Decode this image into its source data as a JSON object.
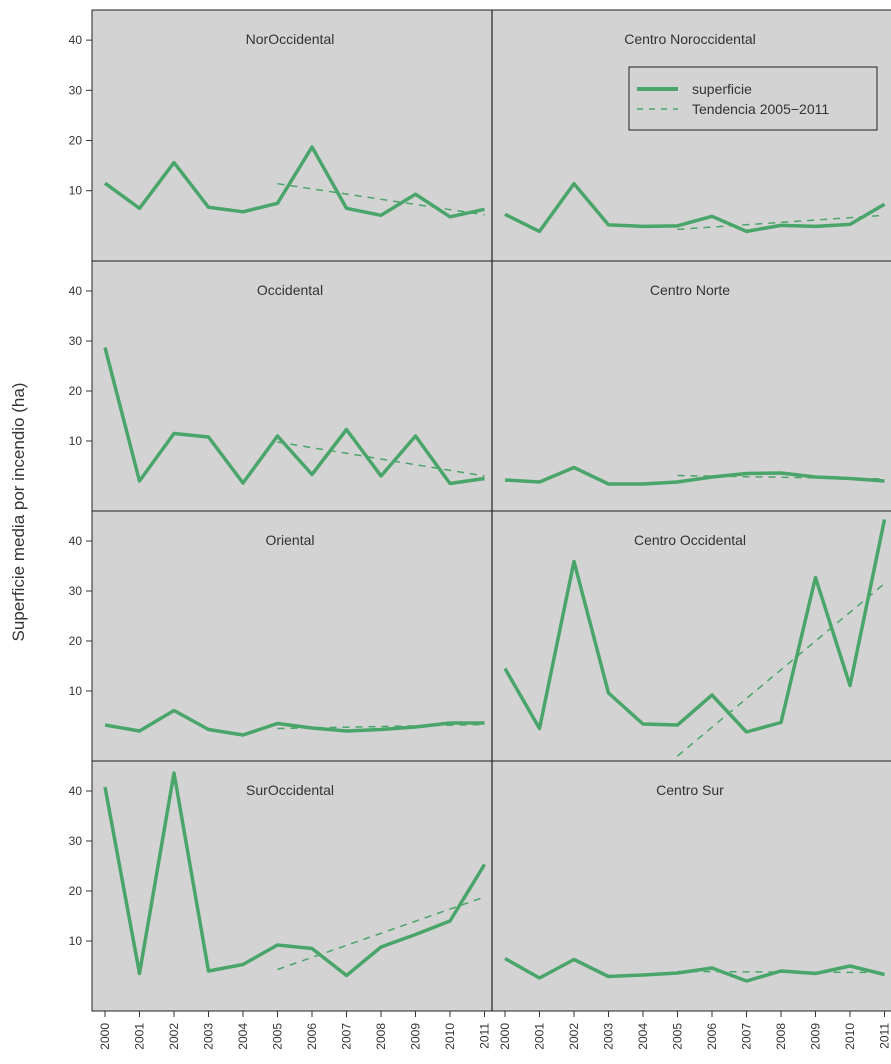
{
  "chart_data": {
    "type": "line",
    "ylabel": "Superficie media por incendio (ha)",
    "x": [
      "2000",
      "2001",
      "2002",
      "2003",
      "2004",
      "2005",
      "2006",
      "2007",
      "2008",
      "2009",
      "2010",
      "2011"
    ],
    "y_ticks": [
      10,
      20,
      30,
      40
    ],
    "ylim": [
      -4,
      46
    ],
    "grid": false,
    "background_color": "#d3d3d3",
    "series_color": "#4aa56a",
    "legend": {
      "placement": "top-right of panel Centro Noroccidental",
      "entries": [
        "superficie",
        "Tendencia 2005−2011"
      ]
    },
    "panels": [
      {
        "title": "NorOccidental",
        "superficie": [
          11.5,
          6.5,
          15.6,
          6.7,
          5.8,
          7.5,
          18.7,
          6.5,
          5.1,
          9.3,
          4.8,
          6.3
        ],
        "tendencia": {
          "from": "2005",
          "to": "2011",
          "values": [
            11.4,
            5.2
          ]
        }
      },
      {
        "title": "Centro Noroccidental",
        "superficie": [
          5.3,
          1.9,
          11.4,
          3.2,
          2.9,
          3.0,
          4.9,
          1.9,
          3.1,
          2.9,
          3.3,
          7.3
        ],
        "tendencia": {
          "from": "2005",
          "to": "2011",
          "values": [
            2.3,
            5.1
          ]
        }
      },
      {
        "title": "Occidental",
        "superficie": [
          28.7,
          2.0,
          11.5,
          10.8,
          1.6,
          11.0,
          3.3,
          12.3,
          3.0,
          11.0,
          1.5,
          2.5
        ],
        "tendencia": {
          "from": "2005",
          "to": "2011",
          "values": [
            9.8,
            3.0
          ]
        }
      },
      {
        "title": "Centro Norte",
        "superficie": [
          2.2,
          1.8,
          4.7,
          1.4,
          1.4,
          1.8,
          2.8,
          3.5,
          3.6,
          2.8,
          2.5,
          2.0
        ],
        "tendencia": {
          "from": "2005",
          "to": "2011",
          "values": [
            3.1,
            2.4
          ]
        }
      },
      {
        "title": "Oriental",
        "superficie": [
          3.2,
          2.0,
          6.1,
          2.3,
          1.2,
          3.5,
          2.6,
          2.0,
          2.3,
          2.8,
          3.6,
          3.6
        ],
        "tendencia": {
          "from": "2005",
          "to": "2011",
          "values": [
            2.5,
            3.3
          ]
        }
      },
      {
        "title": "Centro Occidental",
        "superficie": [
          14.5,
          2.5,
          35.9,
          9.6,
          3.4,
          3.2,
          9.2,
          1.8,
          3.7,
          32.7,
          11.1,
          44.3
        ],
        "tendencia": {
          "from": "2005",
          "to": "2011",
          "values": [
            -3.0,
            31.5
          ]
        }
      },
      {
        "title": "SurOccidental",
        "superficie": [
          40.8,
          3.5,
          43.6,
          4.0,
          5.3,
          9.2,
          8.5,
          3.1,
          8.8,
          11.3,
          14.0,
          25.3
        ],
        "tendencia": {
          "from": "2005",
          "to": "2011",
          "values": [
            4.3,
            18.8
          ]
        }
      },
      {
        "title": "Centro Sur",
        "superficie": [
          6.5,
          2.6,
          6.3,
          2.9,
          3.2,
          3.6,
          4.6,
          2.0,
          4.0,
          3.5,
          5.0,
          3.3
        ],
        "tendencia": {
          "from": "2005",
          "to": "2011",
          "values": [
            3.9,
            3.7
          ]
        }
      }
    ]
  }
}
